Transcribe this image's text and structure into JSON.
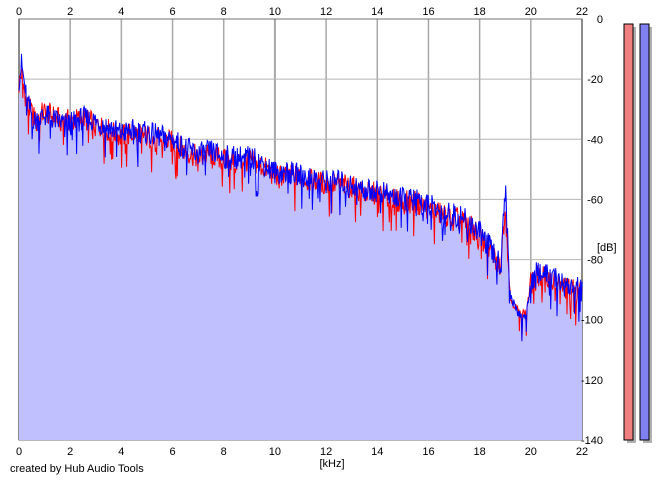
{
  "chart_data": {
    "type": "area",
    "x_unit_label": "[kHz]",
    "y_unit_label": "[dB]",
    "xlim": [
      0,
      22
    ],
    "ylim": [
      -140,
      0
    ],
    "x_ticks": [
      "0",
      "2",
      "4",
      "6",
      "8",
      "10",
      "12",
      "14",
      "16",
      "18",
      "20",
      "22"
    ],
    "y_ticks": [
      "0",
      "-20",
      "-40",
      "-60",
      "-80",
      "-100",
      "-120",
      "-140"
    ],
    "grid": true,
    "series": [
      {
        "color": "#ff0000",
        "x": [
          0,
          0.1,
          0.3,
          0.6,
          1,
          1.5,
          2,
          2.5,
          3,
          3.5,
          4,
          4.5,
          5,
          5.5,
          6,
          6.5,
          7,
          7.5,
          8,
          8.5,
          9,
          9.5,
          10,
          10.5,
          11,
          11.5,
          12,
          12.5,
          13,
          13.5,
          14,
          14.5,
          15,
          15.5,
          16,
          16.5,
          17,
          17.5,
          18,
          18.4,
          18.8,
          19.0,
          19.2,
          19.5,
          19.8,
          20,
          20.3,
          20.6,
          21,
          21.5,
          22
        ],
        "values": [
          -22,
          -18,
          -28,
          -33,
          -31,
          -33,
          -34,
          -33,
          -35,
          -37,
          -39,
          -38,
          -39,
          -40,
          -41,
          -44,
          -46,
          -45,
          -47,
          -47,
          -47,
          -49,
          -52,
          -52,
          -53,
          -54,
          -55,
          -55,
          -56,
          -58,
          -58,
          -60,
          -61,
          -61,
          -63,
          -65,
          -66,
          -68,
          -72,
          -77,
          -83,
          -62,
          -93,
          -97,
          -98,
          -88,
          -85,
          -86,
          -88,
          -90,
          -91
        ]
      },
      {
        "color": "#0000ff",
        "x": [
          0,
          0.1,
          0.3,
          0.6,
          1,
          1.5,
          2,
          2.5,
          3,
          3.5,
          4,
          4.5,
          5,
          5.5,
          6,
          6.5,
          7,
          7.5,
          8,
          8.5,
          9,
          9.5,
          10,
          10.5,
          11,
          11.5,
          12,
          12.5,
          13,
          13.5,
          14,
          14.5,
          15,
          15.5,
          16,
          16.5,
          17,
          17.5,
          18,
          18.4,
          18.8,
          19.0,
          19.2,
          19.5,
          19.8,
          20,
          20.3,
          20.6,
          21,
          21.5,
          22
        ],
        "values": [
          -20,
          -15,
          -27,
          -34,
          -32,
          -34,
          -35,
          -33,
          -34,
          -36,
          -38,
          -37,
          -38,
          -39,
          -40,
          -43,
          -45,
          -44,
          -46,
          -46,
          -46,
          -48,
          -51,
          -51,
          -52,
          -53,
          -54,
          -54,
          -55,
          -57,
          -57,
          -59,
          -60,
          -60,
          -62,
          -64,
          -65,
          -67,
          -71,
          -76,
          -82,
          -56,
          -92,
          -98,
          -99,
          -87,
          -84,
          -85,
          -87,
          -89,
          -90
        ]
      }
    ],
    "level_meters": [
      {
        "color": "#f08080",
        "level_fraction": 1.0
      },
      {
        "color": "#8080f0",
        "level_fraction": 1.0
      }
    ]
  },
  "footer": {
    "credit": "created by Hub Audio Tools"
  }
}
